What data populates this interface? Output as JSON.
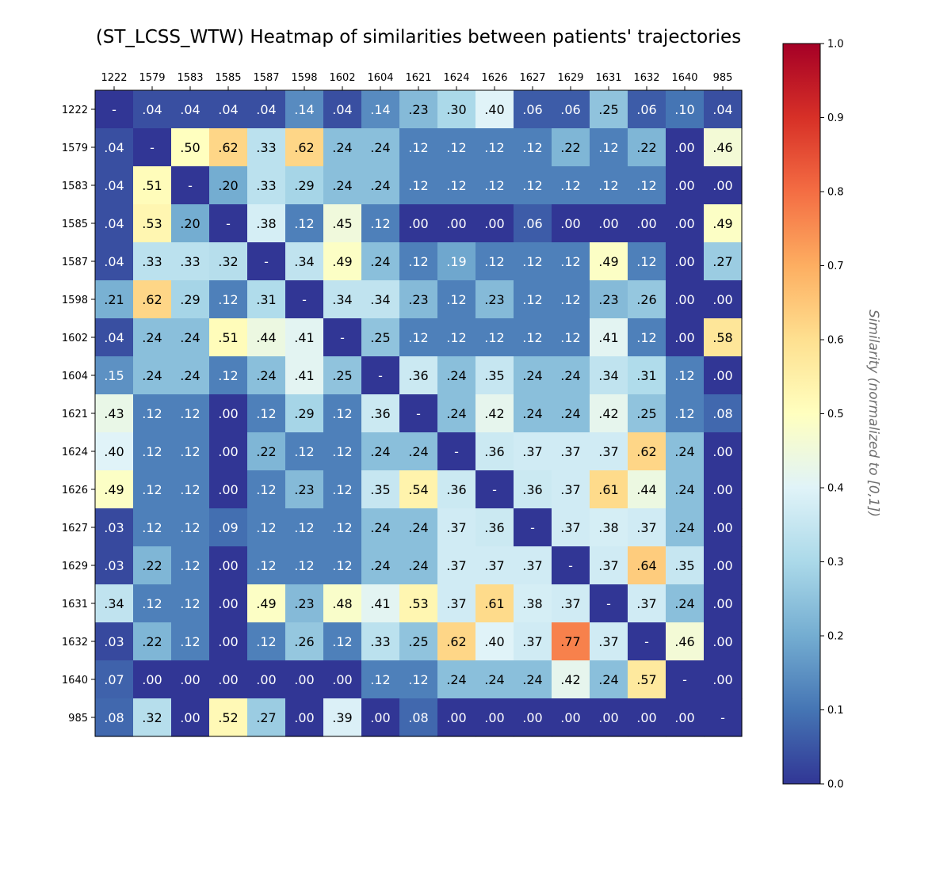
{
  "chart_data": {
    "type": "heatmap",
    "title": "(ST_LCSS_WTW) Heatmap of similarities between patients' trajectories",
    "x_categories": [
      "1222",
      "1579",
      "1583",
      "1585",
      "1587",
      "1598",
      "1602",
      "1604",
      "1621",
      "1624",
      "1626",
      "1627",
      "1629",
      "1631",
      "1632",
      "1640",
      "985"
    ],
    "y_categories": [
      "1222",
      "1579",
      "1583",
      "1585",
      "1587",
      "1598",
      "1602",
      "1604",
      "1621",
      "1624",
      "1626",
      "1627",
      "1629",
      "1631",
      "1632",
      "1640",
      "985"
    ],
    "values": [
      [
        null,
        0.04,
        0.04,
        0.04,
        0.04,
        0.14,
        0.04,
        0.14,
        0.23,
        0.3,
        0.4,
        0.06,
        0.06,
        0.25,
        0.06,
        0.1,
        0.04
      ],
      [
        0.04,
        null,
        0.5,
        0.62,
        0.33,
        0.62,
        0.24,
        0.24,
        0.12,
        0.12,
        0.12,
        0.12,
        0.22,
        0.12,
        0.22,
        0.0,
        0.46
      ],
      [
        0.04,
        0.51,
        null,
        0.2,
        0.33,
        0.29,
        0.24,
        0.24,
        0.12,
        0.12,
        0.12,
        0.12,
        0.12,
        0.12,
        0.12,
        0.0,
        0.0
      ],
      [
        0.04,
        0.53,
        0.2,
        null,
        0.38,
        0.12,
        0.45,
        0.12,
        0.0,
        0.0,
        0.0,
        0.06,
        0.0,
        0.0,
        0.0,
        0.0,
        0.49
      ],
      [
        0.04,
        0.33,
        0.33,
        0.32,
        null,
        0.34,
        0.49,
        0.24,
        0.12,
        0.19,
        0.12,
        0.12,
        0.12,
        0.49,
        0.12,
        0.0,
        0.27
      ],
      [
        0.21,
        0.62,
        0.29,
        0.12,
        0.31,
        null,
        0.34,
        0.34,
        0.23,
        0.12,
        0.23,
        0.12,
        0.12,
        0.23,
        0.26,
        0.0,
        0.0
      ],
      [
        0.04,
        0.24,
        0.24,
        0.51,
        0.44,
        0.41,
        null,
        0.25,
        0.12,
        0.12,
        0.12,
        0.12,
        0.12,
        0.41,
        0.12,
        0.0,
        0.58
      ],
      [
        0.15,
        0.24,
        0.24,
        0.12,
        0.24,
        0.41,
        0.25,
        null,
        0.36,
        0.24,
        0.35,
        0.24,
        0.24,
        0.34,
        0.31,
        0.12,
        0.0
      ],
      [
        0.43,
        0.12,
        0.12,
        0.0,
        0.12,
        0.29,
        0.12,
        0.36,
        null,
        0.24,
        0.42,
        0.24,
        0.24,
        0.42,
        0.25,
        0.12,
        0.08
      ],
      [
        0.4,
        0.12,
        0.12,
        0.0,
        0.22,
        0.12,
        0.12,
        0.24,
        0.24,
        null,
        0.36,
        0.37,
        0.37,
        0.37,
        0.62,
        0.24,
        0.0
      ],
      [
        0.49,
        0.12,
        0.12,
        0.0,
        0.12,
        0.23,
        0.12,
        0.35,
        0.54,
        0.36,
        null,
        0.36,
        0.37,
        0.61,
        0.44,
        0.24,
        0.0
      ],
      [
        0.03,
        0.12,
        0.12,
        0.09,
        0.12,
        0.12,
        0.12,
        0.24,
        0.24,
        0.37,
        0.36,
        null,
        0.37,
        0.38,
        0.37,
        0.24,
        0.0
      ],
      [
        0.03,
        0.22,
        0.12,
        0.0,
        0.12,
        0.12,
        0.12,
        0.24,
        0.24,
        0.37,
        0.37,
        0.37,
        null,
        0.37,
        0.64,
        0.35,
        0.0
      ],
      [
        0.34,
        0.12,
        0.12,
        0.0,
        0.49,
        0.23,
        0.48,
        0.41,
        0.53,
        0.37,
        0.61,
        0.38,
        0.37,
        null,
        0.37,
        0.24,
        0.0
      ],
      [
        0.03,
        0.22,
        0.12,
        0.0,
        0.12,
        0.26,
        0.12,
        0.33,
        0.25,
        0.62,
        0.4,
        0.37,
        0.77,
        0.37,
        null,
        0.46,
        0.0
      ],
      [
        0.07,
        0.0,
        0.0,
        0.0,
        0.0,
        0.0,
        0.0,
        0.12,
        0.12,
        0.24,
        0.24,
        0.24,
        0.42,
        0.24,
        0.57,
        null,
        0.0
      ],
      [
        0.08,
        0.32,
        0.0,
        0.52,
        0.27,
        0.0,
        0.39,
        0.0,
        0.08,
        0.0,
        0.0,
        0.0,
        0.0,
        0.0,
        0.0,
        0.0,
        null
      ]
    ],
    "diagonal_label": "-",
    "colorscale": "RdYlBu_r",
    "vmin": 0.0,
    "vmax": 1.0,
    "colorbar": {
      "label": "Similarity (normalized to [0,1])",
      "ticks": [
        "0.0",
        "0.1",
        "0.2",
        "0.3",
        "0.4",
        "0.5",
        "0.6",
        "0.7",
        "0.8",
        "0.9",
        "1.0"
      ]
    },
    "x_axis_position": "top",
    "grid": false
  }
}
